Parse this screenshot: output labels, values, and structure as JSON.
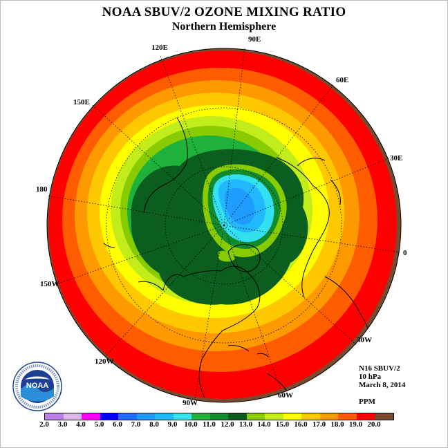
{
  "header": {
    "title": "NOAA SBUV/2 OZONE MIXING RATIO",
    "subtitle": "Northern Hemisphere"
  },
  "longitude_labels": {
    "l90e": "90E",
    "l120e": "120E",
    "l60e": "60E",
    "l150e": "150E",
    "l30e": "30E",
    "l180": "180",
    "l0": "0",
    "l150w": "150W",
    "l30w": "30W",
    "l120w": "120W",
    "l60w": "60W",
    "l90w": "90W"
  },
  "info": {
    "instrument": "N16 SBUV/2",
    "level": "10 hPa",
    "date": "March 8, 2014",
    "units": "PPM"
  },
  "logo": {
    "text": "NOAA",
    "ring_text": "NATIONAL OCEANIC AND ATMOSPHERIC ADMINISTRATION · U.S. DEPARTMENT OF COMMERCE"
  },
  "colorbar": {
    "levels": [
      "2.0",
      "3.0",
      "4.0",
      "5.0",
      "6.0",
      "7.0",
      "8.0",
      "9.0",
      "10.0",
      "11.0",
      "12.0",
      "13.0",
      "14.0",
      "15.0",
      "16.0",
      "17.0",
      "18.0",
      "19.0",
      "20.0"
    ],
    "colors": [
      "#bf7fe8",
      "#dcb6ee",
      "#ff00ff",
      "#0000ff",
      "#1f6fff",
      "#1e9cff",
      "#22b8ff",
      "#33e0f0",
      "#1fb23a",
      "#128a2e",
      "#0b5e1e",
      "#88cc00",
      "#c2ec1a",
      "#ffff00",
      "#ffc800",
      "#ff9900",
      "#ff5c00",
      "#ff0000",
      "#7a4a2f"
    ]
  },
  "map_colors": {
    "brown": "#7a4a2f",
    "red": "#ff0000",
    "orange_red": "#ff5c00",
    "orange": "#ff9900",
    "gold": "#ffc800",
    "yellow": "#ffff00",
    "yellow_green": "#c2ec1a",
    "lime": "#88cc00",
    "green": "#1fb23a",
    "mid_green": "#128a2e",
    "dark_green": "#0b5e1e",
    "cyan": "#33e0f0",
    "light_blue": "#22b8ff",
    "blue": "#1e9cff"
  }
}
